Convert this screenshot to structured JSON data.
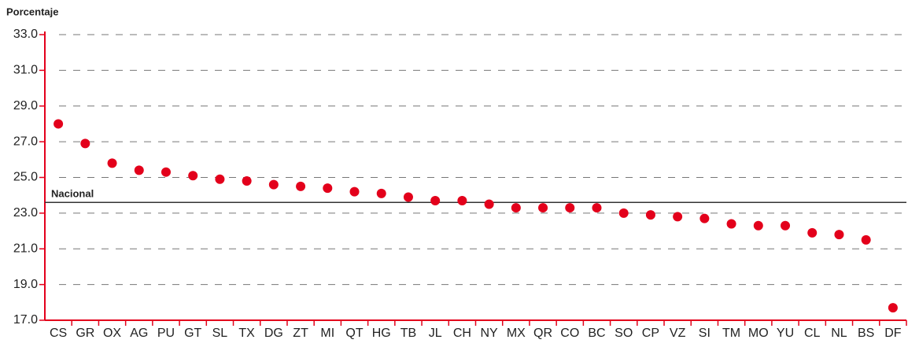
{
  "chart_data": {
    "type": "scatter",
    "y_axis_label": "Porcentaje",
    "categories": [
      "CS",
      "GR",
      "OX",
      "AG",
      "PU",
      "GT",
      "SL",
      "TX",
      "DG",
      "ZT",
      "MI",
      "QT",
      "HG",
      "TB",
      "JL",
      "CH",
      "NY",
      "MX",
      "QR",
      "CO",
      "BC",
      "SO",
      "CP",
      "VZ",
      "SI",
      "TM",
      "MO",
      "YU",
      "CL",
      "NL",
      "BS",
      "DF"
    ],
    "values": [
      28.0,
      26.9,
      25.8,
      25.4,
      25.3,
      25.1,
      24.9,
      24.8,
      24.6,
      24.5,
      24.4,
      24.2,
      24.1,
      23.9,
      23.7,
      23.7,
      23.5,
      23.3,
      23.3,
      23.3,
      23.3,
      23.0,
      22.9,
      22.8,
      22.7,
      22.4,
      22.3,
      22.3,
      21.9,
      21.8,
      21.5,
      17.7
    ],
    "color": "#e3001b",
    "ylim": [
      17,
      33
    ],
    "yticks": [
      {
        "value": 17,
        "label": "17.0"
      },
      {
        "value": 19,
        "label": "19.0"
      },
      {
        "value": 21,
        "label": "21.0"
      },
      {
        "value": 23,
        "label": "23.0"
      },
      {
        "value": 25,
        "label": "25.0"
      },
      {
        "value": 27,
        "label": "27.0"
      },
      {
        "value": 29,
        "label": "29.0"
      },
      {
        "value": 31,
        "label": "31.0"
      },
      {
        "value": 33,
        "label": "33.0"
      }
    ],
    "grid": true,
    "reference_line": {
      "label": "Nacional",
      "value": 23.6
    }
  }
}
